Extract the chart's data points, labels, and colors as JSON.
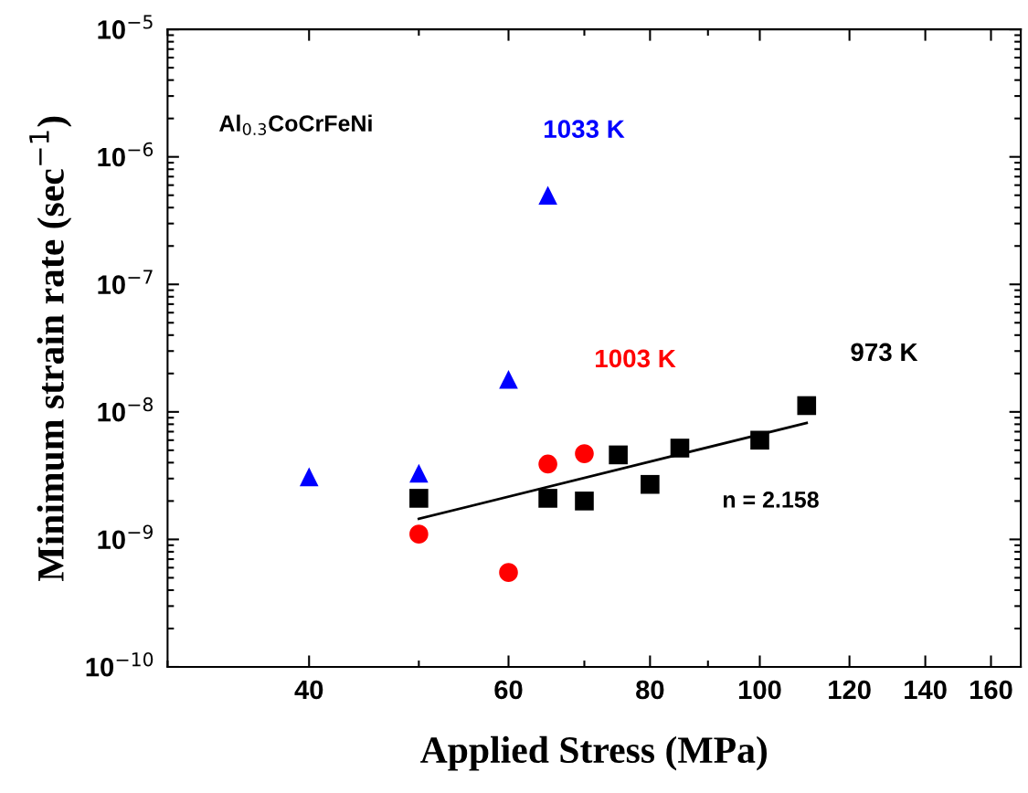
{
  "chart_data": {
    "type": "scatter",
    "xlabel": "Applied Stress (MPa)",
    "ylabel": "Minimum strain rate (sec$^{−1}$)",
    "log": "xy",
    "grid": false,
    "legend": false,
    "xlim": [
      30,
      170
    ],
    "xticks": [
      40,
      60,
      80,
      100,
      120,
      140,
      160
    ],
    "ylim": [
      1e-10,
      1e-05
    ],
    "yticks": [
      {
        "value": 1e-10,
        "label": "10$^{−10}$"
      },
      {
        "value": 1e-09,
        "label": "10$^{−9}$"
      },
      {
        "value": 1e-08,
        "label": "10$^{−8}$"
      },
      {
        "value": 1e-07,
        "label": "10$^{−7}$"
      },
      {
        "value": 1e-06,
        "label": "10$^{−6}$"
      },
      {
        "value": 1e-05,
        "label": "10$^{−5}$"
      }
    ],
    "annotations": [
      "Al$_{0.3}$CoCrFeNi",
      "n = 2.158"
    ],
    "series": [
      {
        "name": "1033 K",
        "color": "#0000ff",
        "marker": "triangle",
        "x": [
          40,
          50,
          60,
          65
        ],
        "values": [
          3.1e-09,
          3.3e-09,
          1.8e-08,
          5e-07
        ]
      },
      {
        "name": "1003 K",
        "color": "#ff0000",
        "marker": "circle",
        "x": [
          50,
          60,
          65,
          70
        ],
        "values": [
          1.1e-09,
          5.5e-10,
          3.9e-09,
          4.7e-09
        ]
      },
      {
        "name": "973 K",
        "color": "#000000",
        "marker": "square",
        "x": [
          50,
          65,
          70,
          75,
          80,
          85,
          100,
          110
        ],
        "values": [
          2.1e-09,
          2.1e-09,
          2e-09,
          4.6e-09,
          2.7e-09,
          5.2e-09,
          6e-09,
          1.12e-08
        ]
      },
      {
        "type": "line",
        "color": "#000000",
        "marker": "none",
        "line_style": "solid",
        "x": [
          50,
          110
        ],
        "values": [
          1.45e-09,
          8.2e-09
        ]
      }
    ]
  }
}
